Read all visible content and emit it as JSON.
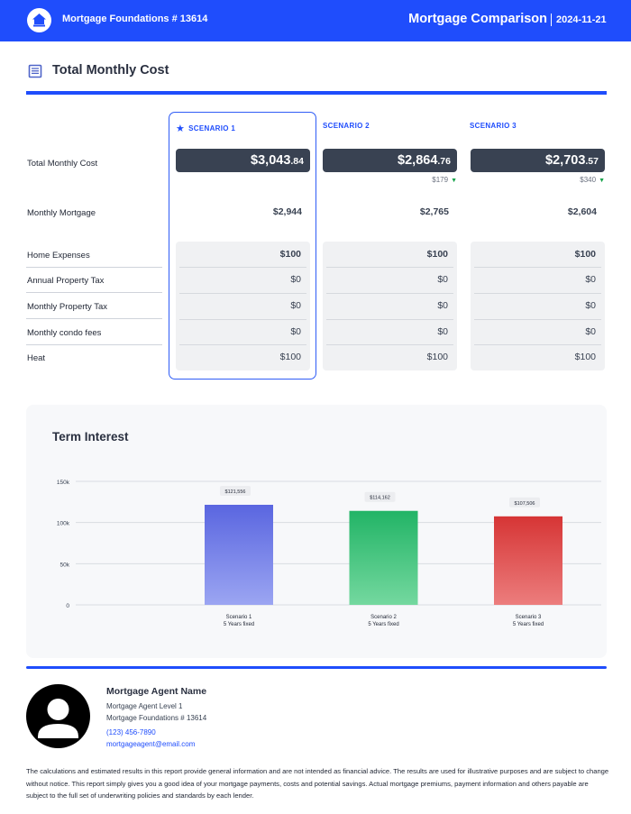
{
  "header": {
    "brand": "Mortgage Foundations # 13614",
    "title": "Mortgage Comparison",
    "date": "2024-11-21",
    "accent_color": "#1f4dfc",
    "logo_icon": "house-logo-icon"
  },
  "section": {
    "title": "Total Monthly Cost",
    "icon": "document-list-icon"
  },
  "row_labels": {
    "total": "Total Monthly Cost",
    "mortgage": "Monthly Mortgage",
    "expenses": [
      "Home Expenses",
      "Annual Property Tax",
      "Monthly Property Tax",
      "Monthly condo fees",
      "Heat"
    ]
  },
  "scenarios": [
    {
      "name": "SCENARIO 1",
      "selected": true,
      "total_main": "$3,043",
      "total_cents": ".84",
      "diff": "",
      "mortgage": "$2,944",
      "expenses": [
        "$100",
        "$0",
        "$0",
        "$0",
        "$100"
      ]
    },
    {
      "name": "SCENARIO 2",
      "selected": false,
      "total_main": "$2,864",
      "total_cents": ".76",
      "diff": "$179",
      "mortgage": "$2,765",
      "expenses": [
        "$100",
        "$0",
        "$0",
        "$0",
        "$100"
      ]
    },
    {
      "name": "SCENARIO 3",
      "selected": false,
      "total_main": "$2,703",
      "total_cents": ".57",
      "diff": "$340",
      "mortgage": "$2,604",
      "expenses": [
        "$100",
        "$0",
        "$0",
        "$0",
        "$100"
      ]
    }
  ],
  "chart_data": {
    "type": "bar",
    "title": "Term Interest",
    "categories": [
      "Scenario 1",
      "Scenario 2",
      "Scenario 3"
    ],
    "category_sublabels": [
      "5 Years fixed",
      "5 Years fixed",
      "5 Years fixed"
    ],
    "values": [
      121556,
      114162,
      107506
    ],
    "value_labels": [
      "$121,556",
      "$114,162",
      "$107,506"
    ],
    "y_ticks": [
      "0",
      "50k",
      "100k",
      "150k"
    ],
    "ylim": [
      0,
      150000
    ],
    "grid": true,
    "colors": [
      [
        "#5a66e0",
        "#9ba5f2"
      ],
      [
        "#22b466",
        "#74d89f"
      ],
      [
        "#d63535",
        "#ec7d7d"
      ]
    ]
  },
  "agent": {
    "name": "Mortgage Agent Name",
    "level": "Mortgage Agent Level 1",
    "company": "Mortgage Foundations # 13614",
    "phone": "(123) 456-7890",
    "email": "mortgageagent@email.com",
    "avatar_icon": "user-avatar-icon"
  },
  "disclaimer": "The calculations and estimated results in this report provide general information and are not intended as financial advice. The results are used for illustrative purposes and are subject to change without notice. This report simply gives you a good idea of your mortgage payments, costs and potential savings. Actual mortgage premiums, payment information and others payable are subject to the full set of underwriting policies and standards by each lender."
}
